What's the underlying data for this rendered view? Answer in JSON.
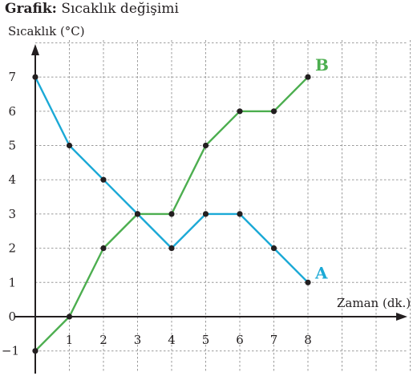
{
  "caption": {
    "bold": "Grafik:",
    "text": "Sıcaklık değişimi"
  },
  "chart_data": {
    "type": "line",
    "title": "Grafik: Sıcaklık değişimi",
    "xlabel": "Zaman (dk.)",
    "ylabel": "Sıcaklık (°C)",
    "xlim": [
      0,
      11
    ],
    "ylim": [
      -1,
      8
    ],
    "x_ticks": [
      "1",
      "2",
      "3",
      "4",
      "5",
      "6",
      "7",
      "8"
    ],
    "y_ticks": [
      "−1",
      "0",
      "1",
      "2",
      "3",
      "4",
      "5",
      "6",
      "7"
    ],
    "grid": true,
    "series": [
      {
        "name": "A",
        "color": "#1ba9d6",
        "x": [
          0,
          1,
          2,
          3,
          4,
          5,
          6,
          7,
          8
        ],
        "y": [
          7,
          5,
          4,
          3,
          2,
          3,
          3,
          2,
          1
        ]
      },
      {
        "name": "B",
        "color": "#4cae4f",
        "x": [
          0,
          1,
          2,
          3,
          4,
          5,
          6,
          7,
          8
        ],
        "y": [
          -1,
          0,
          2,
          3,
          3,
          5,
          6,
          6,
          7
        ]
      }
    ],
    "point_color": "#231f20"
  }
}
